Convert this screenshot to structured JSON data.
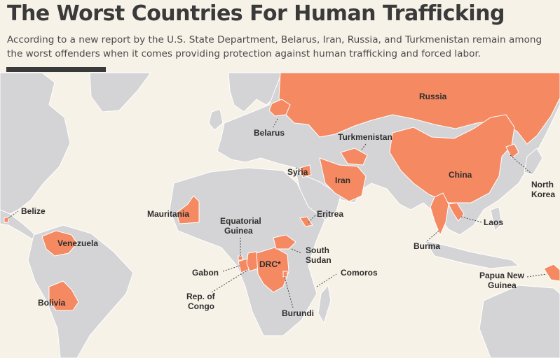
{
  "header": {
    "title": "The Worst Countries For Human Trafficking",
    "subtitle": "According to a new report by the U.S. State Department, Belarus, Iran, Russia, and Turkmenistan remain among the worst offenders when it comes providing protection against human trafficking and forced labor."
  },
  "colors": {
    "highlight": "#f58961",
    "land": "#d4d4d6",
    "background": "#f7f2e8"
  },
  "countries": {
    "russia": "Russia",
    "belarus": "Belarus",
    "turkmenistan": "Turkmenistan",
    "china": "China",
    "north_korea_line1": "North",
    "north_korea_line2": "Korea",
    "syria": "Syria",
    "iran": "Iran",
    "mauritania": "Mauritania",
    "eritrea": "Eritrea",
    "belize": "Belize",
    "venezuela": "Venezuela",
    "bolivia": "Bolivia",
    "equatorial_guinea_line1": "Equatorial",
    "equatorial_guinea_line2": "Guinea",
    "gabon": "Gabon",
    "drc": "DRC*",
    "south_sudan_line1": "South",
    "south_sudan_line2": "Sudan",
    "comoros": "Comoros",
    "rep_congo_line1": "Rep. of",
    "rep_congo_line2": "Congo",
    "burundi": "Burundi",
    "laos": "Laos",
    "burma": "Burma",
    "papua_line1": "Papua New",
    "papua_line2": "Guinea"
  }
}
